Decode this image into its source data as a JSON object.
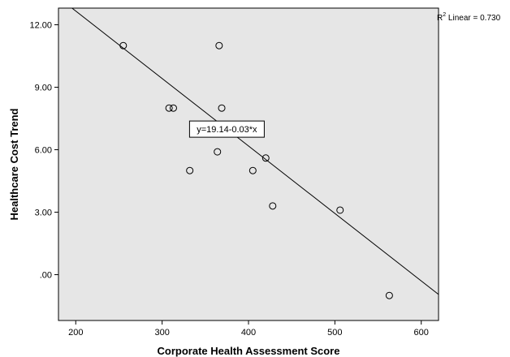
{
  "chart_data": {
    "type": "scatter",
    "title": "",
    "xlabel": "Corporate Health Assessment Score",
    "ylabel": "Healthcare Cost Trend",
    "xlim": [
      180,
      620
    ],
    "ylim": [
      -2.2,
      12.8
    ],
    "xticks": [
      200,
      300,
      400,
      500,
      600
    ],
    "xtick_labels": [
      "200",
      "300",
      "400",
      "500",
      "600"
    ],
    "yticks": [
      0,
      3,
      6,
      9,
      12
    ],
    "ytick_labels": [
      ".00",
      "3.00",
      "6.00",
      "9.00",
      "12.00"
    ],
    "grid": false,
    "background": "#e6e6e6",
    "marker": "open-circle",
    "points": [
      {
        "x": 255,
        "y": 11.0
      },
      {
        "x": 308,
        "y": 8.0
      },
      {
        "x": 313,
        "y": 8.0
      },
      {
        "x": 332,
        "y": 5.0
      },
      {
        "x": 355,
        "y": 7.0
      },
      {
        "x": 364,
        "y": 5.9
      },
      {
        "x": 366,
        "y": 11.0
      },
      {
        "x": 369,
        "y": 8.0
      },
      {
        "x": 405,
        "y": 5.0
      },
      {
        "x": 420,
        "y": 5.6
      },
      {
        "x": 428,
        "y": 3.3
      },
      {
        "x": 506,
        "y": 3.1
      },
      {
        "x": 563,
        "y": -1.0
      }
    ],
    "fit_line": {
      "equation": "y=19.14-0.03*x",
      "intercept": 19.14,
      "slope": -0.0324
    },
    "r2_label": {
      "prefix": "R",
      "sup": "2",
      "suffix": " Linear = 0.730"
    }
  }
}
